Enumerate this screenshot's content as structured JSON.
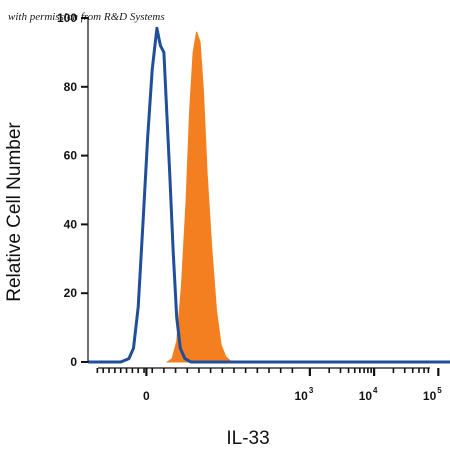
{
  "watermark": "with permission from R&D Systems",
  "chart_data": {
    "type": "area",
    "xlabel": "IL-33",
    "ylabel": "Relative Cell Number",
    "ylim": [
      0,
      100
    ],
    "x_scale": "biexponential",
    "x_ticks": [
      {
        "base": "0",
        "exp": ""
      },
      {
        "base": "10",
        "exp": "3"
      },
      {
        "base": "10",
        "exp": "4"
      },
      {
        "base": "10",
        "exp": "5"
      }
    ],
    "y_ticks": [
      "0",
      "20",
      "40",
      "60",
      "80",
      "100"
    ],
    "series": [
      {
        "style": "filled",
        "color": "#f47f20",
        "points": [
          [
            0.18,
            0
          ],
          [
            0.22,
            1
          ],
          [
            0.26,
            6
          ],
          [
            0.3,
            22
          ],
          [
            0.34,
            47
          ],
          [
            0.37,
            73
          ],
          [
            0.4,
            90
          ],
          [
            0.43,
            96
          ],
          [
            0.46,
            93
          ],
          [
            0.49,
            78
          ],
          [
            0.52,
            55
          ],
          [
            0.56,
            33
          ],
          [
            0.6,
            15
          ],
          [
            0.64,
            5
          ],
          [
            0.68,
            1.5
          ],
          [
            0.73,
            0
          ]
        ]
      },
      {
        "style": "outline",
        "color": "#1f4e9a",
        "points": [
          [
            -0.3,
            0
          ],
          [
            -0.22,
            0
          ],
          [
            -0.15,
            1
          ],
          [
            -0.11,
            4
          ],
          [
            -0.07,
            16
          ],
          [
            -0.03,
            40
          ],
          [
            0.01,
            65
          ],
          [
            0.05,
            85
          ],
          [
            0.09,
            97
          ],
          [
            0.12,
            92
          ],
          [
            0.15,
            90
          ],
          [
            0.17,
            76
          ],
          [
            0.2,
            55
          ],
          [
            0.23,
            32
          ],
          [
            0.26,
            13
          ],
          [
            0.29,
            4
          ],
          [
            0.33,
            1
          ],
          [
            0.38,
            0
          ]
        ]
      }
    ]
  }
}
